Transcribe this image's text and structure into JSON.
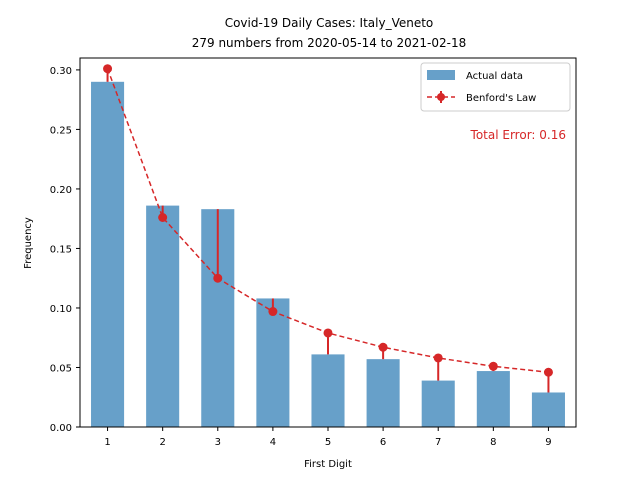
{
  "chart_data": {
    "type": "bar",
    "title": "Covid-19 Daily Cases: Italy_Veneto",
    "subtitle": "279 numbers from 2020-05-14 to 2021-02-18",
    "xlabel": "First Digit",
    "ylabel": "Frequency",
    "categories": [
      "1",
      "2",
      "3",
      "4",
      "5",
      "6",
      "7",
      "8",
      "9"
    ],
    "x": [
      1,
      2,
      3,
      4,
      5,
      6,
      7,
      8,
      9
    ],
    "ylim": [
      0,
      0.31
    ],
    "yticks": [
      0.0,
      0.05,
      0.1,
      0.15,
      0.2,
      0.25,
      0.3
    ],
    "ytick_labels": [
      "0.00",
      "0.05",
      "0.10",
      "0.15",
      "0.20",
      "0.25",
      "0.30"
    ],
    "series": [
      {
        "name": "Actual data",
        "type": "bar",
        "color": "#4c8fbf",
        "values": [
          0.29,
          0.186,
          0.183,
          0.108,
          0.061,
          0.057,
          0.039,
          0.047,
          0.029
        ]
      },
      {
        "name": "Benford's Law",
        "type": "line-dashed-markers",
        "color": "#d62728",
        "values": [
          0.301,
          0.176,
          0.125,
          0.097,
          0.079,
          0.067,
          0.058,
          0.051,
          0.046
        ]
      }
    ],
    "annotation": "Total Error: 0.16",
    "annotation_color": "#d62728",
    "grid": false,
    "legend_position": "top-right"
  }
}
